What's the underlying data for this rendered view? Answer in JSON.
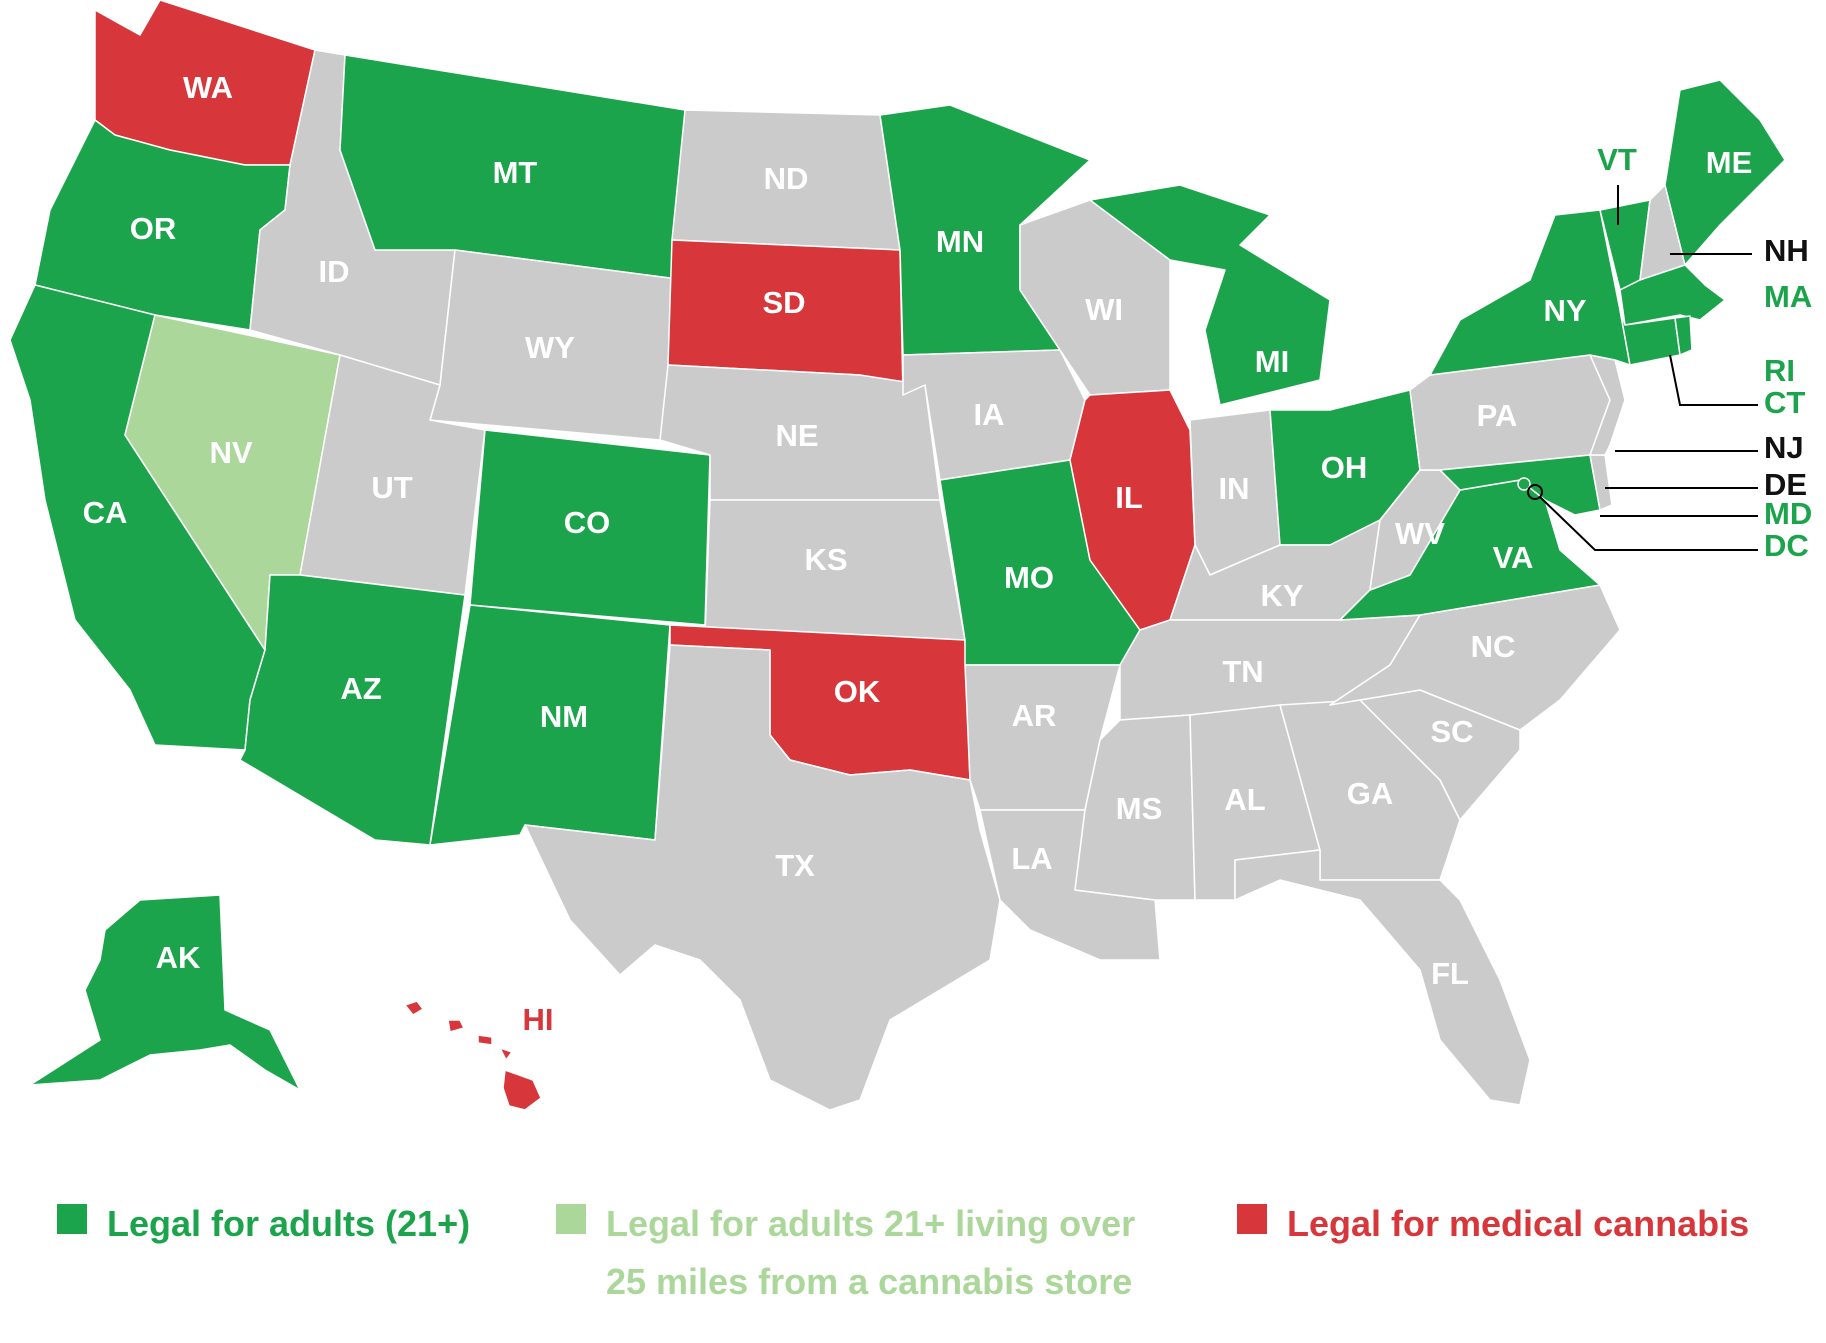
{
  "colors": {
    "adult_use": "#1ba44b",
    "adult_use_remote": "#acd79a",
    "medical": "#d7363b",
    "none": "#cbcbcb",
    "label_on_fill": "#ffffff",
    "external_dark": "#111111"
  },
  "states": [
    {
      "abbr": "WA",
      "status": "medical"
    },
    {
      "abbr": "OR",
      "status": "adult_use"
    },
    {
      "abbr": "CA",
      "status": "adult_use"
    },
    {
      "abbr": "NV",
      "status": "adult_use_remote"
    },
    {
      "abbr": "ID",
      "status": "none"
    },
    {
      "abbr": "MT",
      "status": "adult_use"
    },
    {
      "abbr": "WY",
      "status": "none"
    },
    {
      "abbr": "UT",
      "status": "none"
    },
    {
      "abbr": "AZ",
      "status": "adult_use"
    },
    {
      "abbr": "CO",
      "status": "adult_use"
    },
    {
      "abbr": "NM",
      "status": "adult_use"
    },
    {
      "abbr": "ND",
      "status": "none"
    },
    {
      "abbr": "SD",
      "status": "medical"
    },
    {
      "abbr": "NE",
      "status": "none"
    },
    {
      "abbr": "KS",
      "status": "none"
    },
    {
      "abbr": "OK",
      "status": "medical"
    },
    {
      "abbr": "TX",
      "status": "none"
    },
    {
      "abbr": "MN",
      "status": "adult_use"
    },
    {
      "abbr": "IA",
      "status": "none"
    },
    {
      "abbr": "MO",
      "status": "adult_use"
    },
    {
      "abbr": "AR",
      "status": "none"
    },
    {
      "abbr": "LA",
      "status": "none"
    },
    {
      "abbr": "WI",
      "status": "none"
    },
    {
      "abbr": "IL",
      "status": "medical"
    },
    {
      "abbr": "MI",
      "status": "adult_use"
    },
    {
      "abbr": "IN",
      "status": "none"
    },
    {
      "abbr": "OH",
      "status": "adult_use"
    },
    {
      "abbr": "KY",
      "status": "none"
    },
    {
      "abbr": "TN",
      "status": "none"
    },
    {
      "abbr": "MS",
      "status": "none"
    },
    {
      "abbr": "AL",
      "status": "none"
    },
    {
      "abbr": "GA",
      "status": "none"
    },
    {
      "abbr": "FL",
      "status": "none"
    },
    {
      "abbr": "SC",
      "status": "none"
    },
    {
      "abbr": "NC",
      "status": "none"
    },
    {
      "abbr": "VA",
      "status": "adult_use"
    },
    {
      "abbr": "WV",
      "status": "none"
    },
    {
      "abbr": "PA",
      "status": "none"
    },
    {
      "abbr": "NY",
      "status": "adult_use"
    },
    {
      "abbr": "VT",
      "status": "adult_use"
    },
    {
      "abbr": "NH",
      "status": "none"
    },
    {
      "abbr": "ME",
      "status": "adult_use"
    },
    {
      "abbr": "MA",
      "status": "adult_use"
    },
    {
      "abbr": "RI",
      "status": "adult_use"
    },
    {
      "abbr": "CT",
      "status": "adult_use"
    },
    {
      "abbr": "NJ",
      "status": "none"
    },
    {
      "abbr": "DE",
      "status": "none"
    },
    {
      "abbr": "MD",
      "status": "adult_use"
    },
    {
      "abbr": "DC",
      "status": "adult_use"
    },
    {
      "abbr": "AK",
      "status": "adult_use"
    },
    {
      "abbr": "HI",
      "status": "medical"
    }
  ],
  "legend": {
    "adult_use": "Legal for adults (21+)",
    "adult_use_remote_line1": "Legal for adults 21+ living over",
    "adult_use_remote_line2": "25 miles from a cannabis store",
    "medical": "Legal for medical cannabis"
  }
}
